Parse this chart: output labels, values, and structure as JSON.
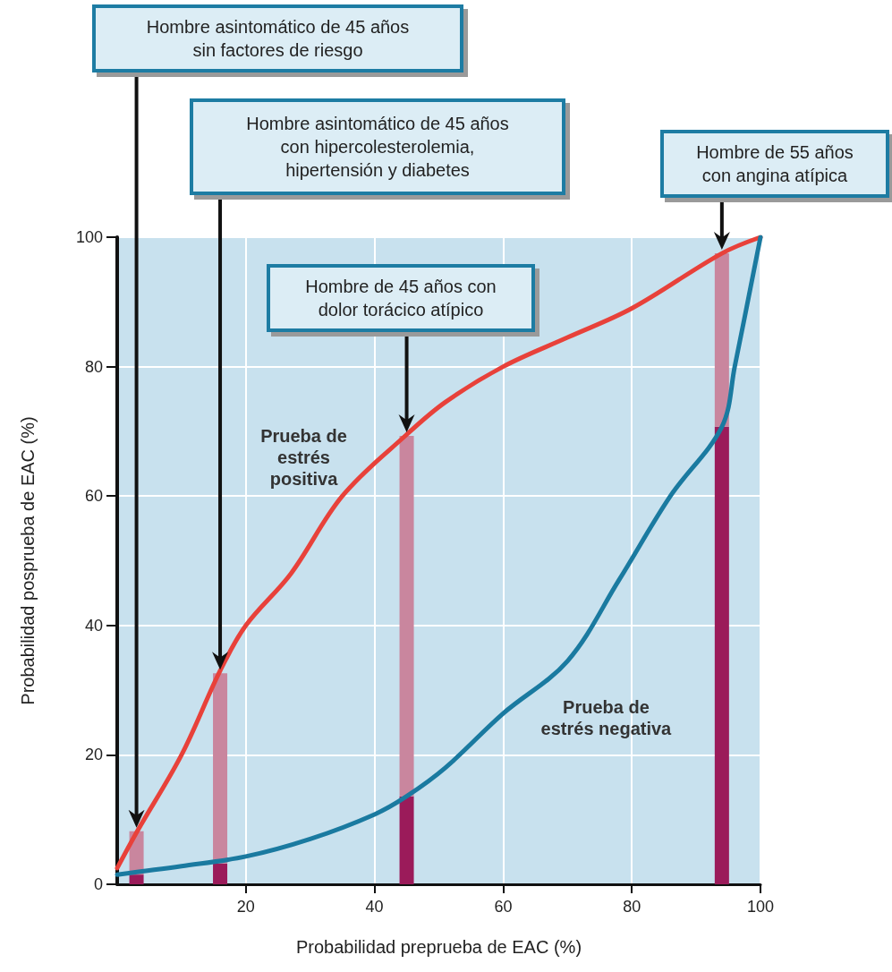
{
  "chart_data": {
    "type": "line",
    "xlabel": "Probabilidad preprueba de EAC (%)",
    "ylabel": "Probabilidad posprueba de EAC (%)",
    "xlim": [
      0,
      100
    ],
    "xticks": [
      20,
      40,
      60,
      80,
      100
    ],
    "ylim": [
      0,
      100
    ],
    "yticks": [
      0,
      20,
      40,
      60,
      80,
      100
    ],
    "grid": true,
    "legend": false,
    "marker": "none",
    "stacked": true,
    "series": [
      {
        "type": "bar",
        "color": "#9b1b5a",
        "x": [
          3,
          16,
          45,
          94
        ],
        "values": [
          1.5,
          3.2,
          13.6,
          70.7
        ]
      },
      {
        "type": "bar",
        "color": "#c9869e",
        "x": [
          3,
          16,
          45,
          94
        ],
        "values": [
          6.7,
          29.4,
          55.7,
          26.8
        ]
      },
      {
        "name": "Prueba de estrés positiva",
        "color": "#e8413a",
        "x": [
          0,
          3,
          10,
          16,
          20,
          27,
          35,
          45,
          51,
          60,
          70,
          80,
          94,
          100
        ],
        "values": [
          2.5,
          8,
          20,
          33,
          40,
          48,
          60,
          69.5,
          74.5,
          80,
          84.5,
          89,
          97.5,
          100
        ]
      },
      {
        "name": "Prueba de estrés negativa",
        "color": "#1a7aa0",
        "x": [
          0,
          10,
          20,
          30,
          40,
          45,
          51,
          60,
          70,
          78,
          86,
          94,
          96,
          100
        ],
        "values": [
          1.5,
          2.8,
          4.3,
          7,
          10.8,
          13.6,
          18,
          26.4,
          34.5,
          47,
          60,
          70.7,
          80,
          100
        ]
      }
    ],
    "annotations": [
      "Hombre asintomático de 45 años\nsin factores de riesgo",
      "Hombre asintomático de 45 años\ncon hipercolesterolemia,\nhipertensión y diabetes",
      "Hombre de 45 años con\ndolor torácico atípico",
      "Hombre de 55 años\ncon angina atípica"
    ]
  }
}
